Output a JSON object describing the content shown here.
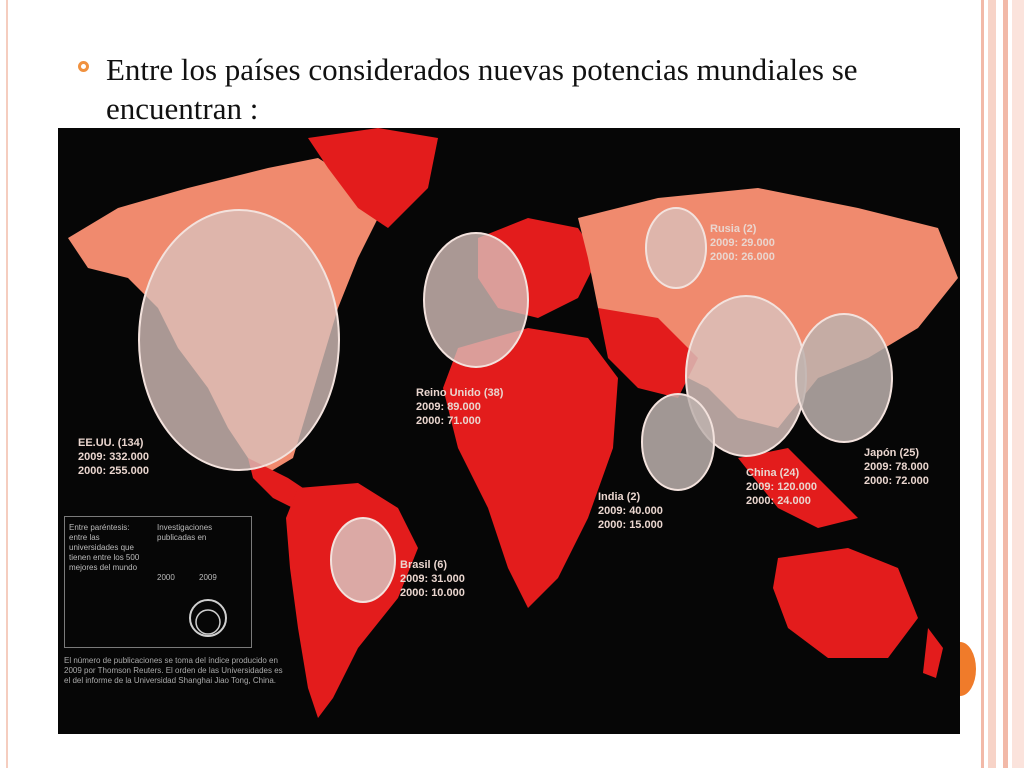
{
  "slide": {
    "bullet_text": "Entre los países considerados nuevas potencias mundiales se encuentran :"
  },
  "map": {
    "labels": [
      {
        "country": "EE.UU. (134)",
        "y2009": "2009: 332.000",
        "y2000": "2000: 255.000"
      },
      {
        "country": "Reino Unido (38)",
        "y2009": "2009: 89.000",
        "y2000": "2000: 71.000"
      },
      {
        "country": "Rusia (2)",
        "y2009": "2009: 29.000",
        "y2000": "2000: 26.000"
      },
      {
        "country": "Japón (25)",
        "y2009": "2009: 78.000",
        "y2000": "2000: 72.000"
      },
      {
        "country": "China (24)",
        "y2009": "2009: 120.000",
        "y2000": "2000: 24.000"
      },
      {
        "country": "India (2)",
        "y2009": "2009: 40.000",
        "y2000": "2000: 15.000"
      },
      {
        "country": "Brasil (6)",
        "y2009": "2009: 31.000",
        "y2000": "2000: 10.000"
      }
    ],
    "legend": {
      "left_text": "Entre paréntesis: entre las universidades que tienen entre los 500 mejores del mundo",
      "right_text": "Investigaciones publicadas en",
      "year_a": "2000",
      "year_b": "2009"
    },
    "note": "El número de publicaciones se toma del índice producido en 2009 por Thomson Reuters. El orden de las Universidades es el del informe de la Universidad Shanghai Jiao Tong, China."
  },
  "colors": {
    "accent": "#f0913f",
    "map_bg": "#060606",
    "land_red": "#e31c1c",
    "land_salmon": "#f08a6e",
    "circle": "#d9c2bd"
  }
}
